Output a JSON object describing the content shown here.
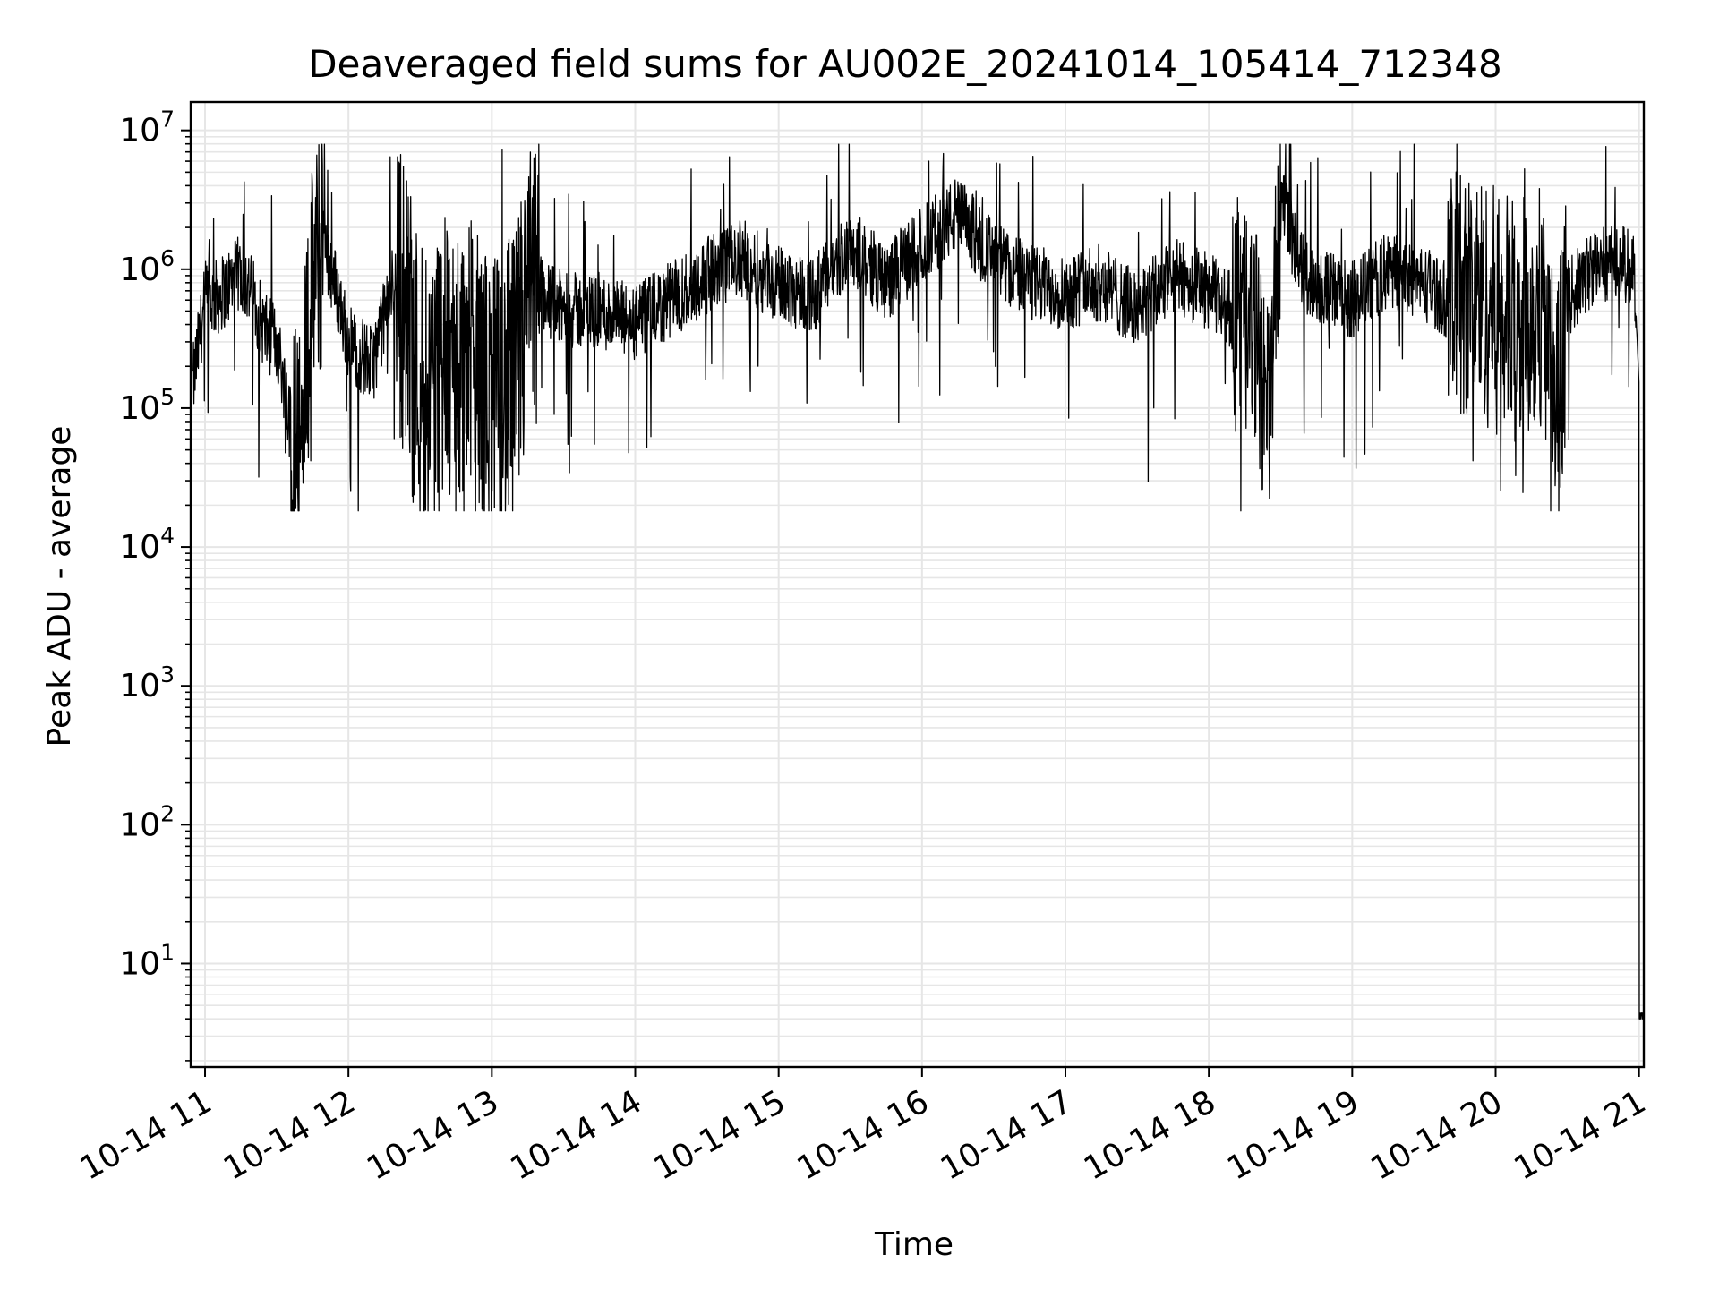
{
  "chart_data": {
    "type": "line",
    "title": "Deaveraged field sums for AU002E_20241014_105414_712348",
    "xlabel": "Time",
    "ylabel": "Peak ADU - average",
    "yscale": "log",
    "ylim": [
      1.8,
      16000000
    ],
    "xlim": [
      "2024-10-14 10:54",
      "2024-10-14 21:02"
    ],
    "grid": true,
    "line_color": "#000000",
    "grid_color": "#e6e6e6",
    "x_ticks": [
      {
        "t": "2024-10-14 11:00",
        "label": "10-14 11"
      },
      {
        "t": "2024-10-14 12:00",
        "label": "10-14 12"
      },
      {
        "t": "2024-10-14 13:00",
        "label": "10-14 13"
      },
      {
        "t": "2024-10-14 14:00",
        "label": "10-14 14"
      },
      {
        "t": "2024-10-14 15:00",
        "label": "10-14 15"
      },
      {
        "t": "2024-10-14 16:00",
        "label": "10-14 16"
      },
      {
        "t": "2024-10-14 17:00",
        "label": "10-14 17"
      },
      {
        "t": "2024-10-14 18:00",
        "label": "10-14 18"
      },
      {
        "t": "2024-10-14 19:00",
        "label": "10-14 19"
      },
      {
        "t": "2024-10-14 20:00",
        "label": "10-14 20"
      },
      {
        "t": "2024-10-14 21:00",
        "label": "10-14 21"
      }
    ],
    "y_ticks": [
      {
        "v": 10,
        "base": "10",
        "exp": "1"
      },
      {
        "v": 100,
        "base": "10",
        "exp": "2"
      },
      {
        "v": 1000,
        "base": "10",
        "exp": "3"
      },
      {
        "v": 10000,
        "base": "10",
        "exp": "4"
      },
      {
        "v": 100000,
        "base": "10",
        "exp": "5"
      },
      {
        "v": 1000000,
        "base": "10",
        "exp": "6"
      },
      {
        "v": 10000000,
        "base": "10",
        "exp": "7"
      }
    ],
    "series": [
      {
        "x": [
          "2024-10-14 10:55",
          "2024-10-14 11:00",
          "2024-10-14 11:05",
          "2024-10-14 11:15",
          "2024-10-14 11:20",
          "2024-10-14 11:25",
          "2024-10-14 11:30",
          "2024-10-14 11:35",
          "2024-10-14 11:40",
          "2024-10-14 11:45",
          "2024-10-14 11:50",
          "2024-10-14 11:55",
          "2024-10-14 12:00",
          "2024-10-14 12:10",
          "2024-10-14 12:20",
          "2024-10-14 12:30",
          "2024-10-14 12:40",
          "2024-10-14 12:50",
          "2024-10-14 13:00",
          "2024-10-14 13:10",
          "2024-10-14 13:15",
          "2024-10-14 13:20",
          "2024-10-14 13:30",
          "2024-10-14 13:45",
          "2024-10-14 14:00",
          "2024-10-14 14:15",
          "2024-10-14 14:30",
          "2024-10-14 14:45",
          "2024-10-14 14:58",
          "2024-10-14 15:15",
          "2024-10-14 15:30",
          "2024-10-14 15:45",
          "2024-10-14 16:00",
          "2024-10-14 16:15",
          "2024-10-14 16:30",
          "2024-10-14 16:45",
          "2024-10-14 17:00",
          "2024-10-14 17:15",
          "2024-10-14 17:30",
          "2024-10-14 17:45",
          "2024-10-14 18:00",
          "2024-10-14 18:10",
          "2024-10-14 18:20",
          "2024-10-14 18:25",
          "2024-10-14 18:30",
          "2024-10-14 18:40",
          "2024-10-14 18:50",
          "2024-10-14 19:00",
          "2024-10-14 19:15",
          "2024-10-14 19:30",
          "2024-10-14 19:40",
          "2024-10-14 19:50",
          "2024-10-14 20:00",
          "2024-10-14 20:10",
          "2024-10-14 20:20",
          "2024-10-14 20:25",
          "2024-10-14 20:30",
          "2024-10-14 20:40",
          "2024-10-14 20:50",
          "2024-10-14 20:58",
          "2024-10-14 21:00",
          "2024-10-14 21:01",
          "2024-10-14 21:02"
        ],
        "y": [
          150000,
          600000,
          620000,
          950000,
          650000,
          350000,
          300000,
          100000,
          60000,
          800000,
          1500000,
          700000,
          300000,
          200000,
          1000000,
          150000,
          200000,
          200000,
          100000,
          150000,
          600000,
          700000,
          500000,
          500000,
          400000,
          600000,
          900000,
          1200000,
          800000,
          650000,
          1500000,
          800000,
          1500000,
          2500000,
          1200000,
          800000,
          700000,
          800000,
          500000,
          900000,
          700000,
          500000,
          300000,
          80000,
          3000000,
          900000,
          700000,
          600000,
          1000000,
          800000,
          600000,
          700000,
          500000,
          400000,
          600000,
          80000,
          600000,
          1000000,
          1200000,
          1000000,
          150000,
          4,
          4
        ]
      }
    ]
  }
}
